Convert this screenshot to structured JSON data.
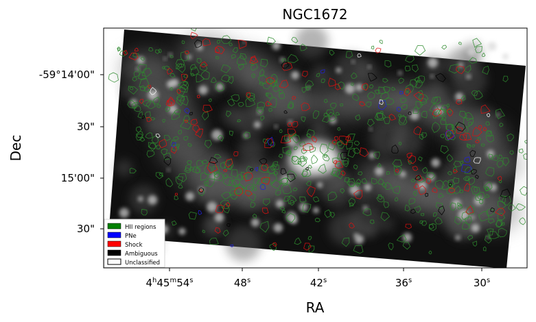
{
  "chart_data": {
    "type": "image",
    "title": "NGC1672",
    "xlabel": "RA",
    "ylabel": "Dec",
    "x_ticks": [
      {
        "base": "4",
        "h": "h",
        "mid": "45",
        "m": "m",
        "tail": "54",
        "s": "s"
      },
      {
        "base": "48",
        "s": "s"
      },
      {
        "base": "42",
        "s": "s"
      },
      {
        "base": "36",
        "s": "s"
      },
      {
        "base": "30",
        "s": "s"
      }
    ],
    "y_ticks": [
      "-59°14'00\"",
      "30\"",
      "15'00\"",
      "30\""
    ],
    "legend": {
      "placement": "lower-left",
      "entries": [
        {
          "label": "HII regions",
          "color": "#008000"
        },
        {
          "label": "PNe",
          "color": "#0000ff"
        },
        {
          "label": "Shock",
          "color": "#ff0000"
        },
        {
          "label": "Ambiguous",
          "color": "#000000"
        },
        {
          "label": "Unclassified",
          "color": "#ffffff"
        }
      ]
    },
    "colors": {
      "background": "#ffffff",
      "frame": "#000000",
      "image_bg": "#101010"
    }
  }
}
